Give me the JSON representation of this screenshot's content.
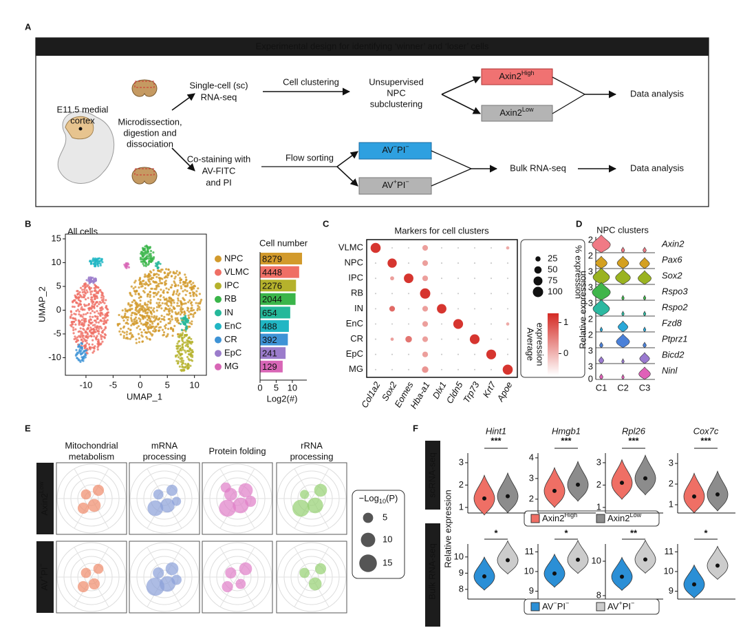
{
  "panel_a": {
    "label": "A",
    "banner": "Experimental design for identifying ‘winner’ and ‘loser’ cells",
    "source": [
      "E11.5 medial",
      "cortex"
    ],
    "prep": [
      "Microdissection,",
      "digestion and",
      "dissociation"
    ],
    "sc": [
      "Single-cell (sc)",
      "RNA-seq"
    ],
    "clustering": "Cell clustering",
    "subclustering": [
      "Unsupervised",
      "NPC",
      "subclustering"
    ],
    "axin2_high": [
      "Axin2",
      "High"
    ],
    "axin2_low": [
      "Axin2",
      "Low"
    ],
    "analysis_top": "Data analysis",
    "costain": [
      "Co-staining with",
      "AV-FITC",
      "and PI"
    ],
    "flow": "Flow sorting",
    "av_neg": [
      "AV",
      "−",
      "PI",
      "−"
    ],
    "av_pos": [
      "AV",
      "+",
      "PI",
      "−"
    ],
    "bulk": "Bulk RNA-seq",
    "analysis_bottom": "Data analysis"
  },
  "panel_b": {
    "label": "B",
    "umap": {
      "title": "All cells",
      "xlabel": "UMAP_1",
      "ylabel": "UMAP_2",
      "xlim": [
        -13.8,
        12.2
      ],
      "ylim": [
        -13.7,
        16
      ],
      "xticks": [
        -10,
        -5,
        0,
        5,
        10
      ],
      "yticks": [
        -10,
        -5,
        0,
        5,
        10,
        15
      ]
    },
    "bars": {
      "type": "bar",
      "title": "Cell number",
      "xlabel": "Log2(#)",
      "scale": "log2",
      "categories": [
        "NPC",
        "VLMC",
        "IPC",
        "RB",
        "IN",
        "EnC",
        "CR",
        "EpC",
        "MG"
      ],
      "colors": [
        "#d29a2c",
        "#ef6f65",
        "#b5b22c",
        "#3ab54a",
        "#25b89a",
        "#21b6c4",
        "#3e93d6",
        "#9b7ccb",
        "#d866b6"
      ],
      "values": [
        8279,
        4448,
        2276,
        2044,
        654,
        488,
        392,
        241,
        129
      ],
      "xlim": [
        0,
        14.5
      ],
      "xticks": [
        0,
        5,
        10
      ]
    }
  },
  "panel_c": {
    "label": "C",
    "title": "Markers for cell clusters",
    "rows": [
      "VLMC",
      "NPC",
      "IPC",
      "RB",
      "IN",
      "EnC",
      "CR",
      "EpC",
      "MG"
    ],
    "genes": [
      "Col1a2",
      "Sox2",
      "Eomes",
      "Hba-a1",
      "Dlx1",
      "Cldn5",
      "Trp73",
      "Krt7",
      "Apoe"
    ],
    "pct": [
      [
        95,
        2,
        2,
        30,
        2,
        2,
        2,
        2,
        10
      ],
      [
        2,
        80,
        2,
        30,
        2,
        2,
        2,
        2,
        2
      ],
      [
        2,
        15,
        85,
        30,
        2,
        2,
        2,
        2,
        2
      ],
      [
        2,
        2,
        2,
        100,
        2,
        2,
        2,
        2,
        2
      ],
      [
        2,
        30,
        2,
        30,
        85,
        2,
        2,
        2,
        2
      ],
      [
        2,
        2,
        2,
        30,
        2,
        90,
        2,
        2,
        10
      ],
      [
        2,
        10,
        40,
        30,
        2,
        2,
        90,
        2,
        2
      ],
      [
        2,
        2,
        2,
        30,
        2,
        2,
        2,
        90,
        2
      ],
      [
        2,
        2,
        2,
        40,
        2,
        2,
        2,
        2,
        95
      ]
    ],
    "avg": [
      [
        1.2,
        0,
        0,
        0.2,
        0,
        0,
        0,
        0,
        0.1
      ],
      [
        0,
        1.2,
        0,
        0.2,
        0,
        0,
        0,
        0,
        0
      ],
      [
        0,
        0.2,
        1.2,
        0.2,
        0,
        0,
        0,
        0,
        0
      ],
      [
        0,
        0,
        0,
        1.2,
        0,
        0,
        0,
        0,
        0
      ],
      [
        0,
        0.7,
        0,
        0.2,
        1.2,
        0,
        0,
        0,
        0
      ],
      [
        0,
        0,
        0,
        0.2,
        0,
        1.2,
        0,
        0,
        0.1
      ],
      [
        0,
        0.2,
        0.6,
        0.2,
        0,
        0,
        1.2,
        0,
        0
      ],
      [
        0,
        0,
        0,
        0.2,
        0,
        0,
        0,
        1.2,
        0
      ],
      [
        0,
        0,
        0,
        0.3,
        0,
        0,
        0,
        0,
        1.2
      ]
    ],
    "size_title": "% expression",
    "size_ticks": [
      25,
      50,
      75,
      100
    ],
    "color_title": [
      "Average",
      "expression"
    ],
    "clim": [
      -0.7,
      1.3
    ],
    "color_ticks": [
      0,
      1
    ]
  },
  "panel_d": {
    "label": "D",
    "title": "NPC clusters",
    "ylabel": "Relative expression",
    "clusters": [
      "C1",
      "C2",
      "C3"
    ],
    "baseline": 0,
    "genes": [
      {
        "name": "Axin2",
        "color": "#f07a85",
        "ytick": 2,
        "values": [
          1,
          0.1,
          0.1
        ]
      },
      {
        "name": "Pax6",
        "color": "#d4a020",
        "ytick": 2,
        "values": [
          0.6,
          0.6,
          0.5
        ]
      },
      {
        "name": "Sox2",
        "color": "#9ab320",
        "ytick": 3,
        "values": [
          0.9,
          0.8,
          0.7
        ]
      },
      {
        "name": "Rspo3",
        "color": "#3fb54a",
        "ytick": 3,
        "values": [
          1,
          0.05,
          0.05
        ]
      },
      {
        "name": "Rspo2",
        "color": "#2cb8a0",
        "ytick": 3,
        "values": [
          0.9,
          0.05,
          0.05
        ]
      },
      {
        "name": "Fzd8",
        "color": "#2aa8d8",
        "ytick": 2,
        "values": [
          0.05,
          0.5,
          0.05
        ]
      },
      {
        "name": "Ptprz1",
        "color": "#4a80d8",
        "ytick": 2,
        "values": [
          0.1,
          0.7,
          0.1
        ]
      },
      {
        "name": "Bicd2",
        "color": "#9a7ad0",
        "ytick": 3,
        "values": [
          0.2,
          0.05,
          0.5
        ]
      },
      {
        "name": "Ninl",
        "color": "#e060b8",
        "ytick": 3,
        "values": [
          0.1,
          0.05,
          0.6
        ]
      }
    ]
  },
  "panel_e": {
    "label": "E",
    "columns": [
      {
        "title": [
          "Mitochondrial",
          "metabolism"
        ],
        "color": "#f08a6a"
      },
      {
        "title": [
          "mRNA",
          "processing"
        ],
        "color": "#8aa0d8"
      },
      {
        "title": [
          "Protein folding"
        ],
        "color": "#e07ec8"
      },
      {
        "title": [
          "rRNA",
          "processing"
        ],
        "color": "#94d070"
      }
    ],
    "rows": [
      {
        "name": [
          "Axin2",
          "Low"
        ],
        "values": [
          [
            5,
            6,
            8,
            6
          ],
          [
            5,
            6,
            10,
            12,
            4
          ],
          [
            8,
            10,
            12,
            14,
            6,
            5
          ],
          [
            4,
            8,
            12,
            14
          ]
        ]
      },
      {
        "name": [
          "AV",
          "+",
          "PI",
          "−"
        ],
        "values": [
          [
            5,
            5,
            6,
            6
          ],
          [
            6,
            8,
            12,
            16,
            5
          ],
          [
            6,
            8,
            5,
            6
          ],
          [
            5,
            6,
            8
          ]
        ]
      }
    ],
    "legend_title": [
      "−Log",
      "10",
      "(P)"
    ],
    "legend_sizes": [
      5,
      10,
      15
    ]
  },
  "panel_f": {
    "label": "F",
    "ylabel": "Relative expression",
    "rows": [
      "scRNA-seq",
      "Bulk RNA-seq"
    ],
    "legend_sc": [
      {
        "text": [
          "Axin2",
          "High"
        ],
        "color": "#ef6f65"
      },
      {
        "text": [
          "Axin2",
          "Low"
        ],
        "color": "#8c8c8c"
      }
    ],
    "legend_bulk": [
      {
        "text": [
          "AV",
          "−",
          "PI",
          "−"
        ],
        "color": "#2b8fd6"
      },
      {
        "text": [
          "AV",
          "+",
          "PI",
          "−"
        ],
        "color": "#cccccc"
      }
    ],
    "genes": [
      {
        "name": "Hint1",
        "sc": {
          "ylim": [
            0.75,
            3.43
          ],
          "yticks": [
            1,
            2,
            3
          ],
          "values": [
            1.4,
            1.5
          ],
          "sig": "***"
        },
        "bulk": {
          "ylim": [
            7.4,
            10.8
          ],
          "yticks": [
            8,
            9,
            10
          ],
          "values": [
            8.8,
            9.8
          ],
          "sig": "*"
        }
      },
      {
        "name": "Hmgb1",
        "sc": {
          "ylim": [
            1.33,
            4.23
          ],
          "yticks": [
            2,
            3,
            4
          ],
          "values": [
            2.4,
            2.7
          ],
          "sig": "***"
        },
        "bulk": {
          "ylim": [
            8.6,
            11.4
          ],
          "yticks": [
            9,
            10,
            11
          ],
          "values": [
            9.9,
            10.6
          ],
          "sig": "*"
        }
      },
      {
        "name": "Rpl26",
        "sc": {
          "ylim": [
            0.75,
            3.43
          ],
          "yticks": [
            1,
            2,
            3
          ],
          "values": [
            2.1,
            2.3
          ],
          "sig": "***"
        },
        "bulk": {
          "ylim": [
            7.8,
            11
          ],
          "yticks": [
            8,
            10
          ],
          "values": [
            9.1,
            10.1
          ],
          "sig": "**"
        }
      },
      {
        "name": "Cox7c",
        "sc": {
          "ylim": [
            0.6,
            3.5
          ],
          "yticks": [
            1,
            2,
            3
          ],
          "values": [
            1.4,
            1.5
          ],
          "sig": "***"
        },
        "bulk": {
          "ylim": [
            8.6,
            11.4
          ],
          "yticks": [
            9,
            10,
            11
          ],
          "values": [
            9.35,
            10.3
          ],
          "sig": "*"
        }
      }
    ]
  }
}
